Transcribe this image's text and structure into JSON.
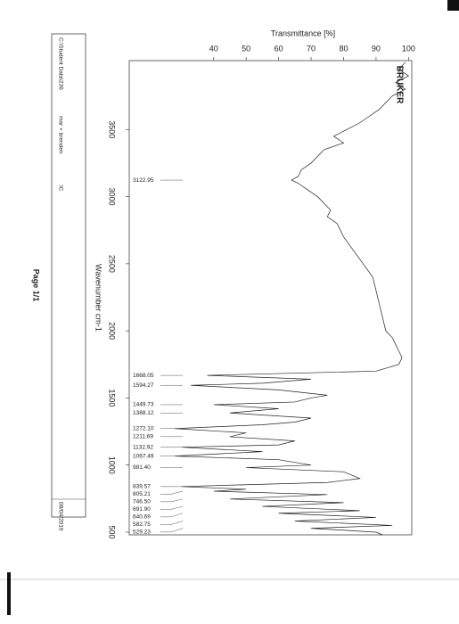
{
  "chart_data": {
    "type": "line",
    "title": "Transmittance [%]",
    "x_label": "Wavenumber cm-1",
    "logo": "BRUKER",
    "x": [
      4000,
      3950,
      3900,
      3850,
      3800,
      3750,
      3700,
      3650,
      3600,
      3550,
      3500,
      3450,
      3400,
      3350,
      3300,
      3250,
      3200,
      3150,
      3123,
      3100,
      3050,
      3000,
      2950,
      2900,
      2850,
      2800,
      2700,
      2600,
      2500,
      2400,
      2300,
      2200,
      2100,
      2000,
      1950,
      1900,
      1850,
      1800,
      1750,
      1700,
      1668,
      1640,
      1610,
      1594,
      1560,
      1520,
      1500,
      1470,
      1450,
      1420,
      1388,
      1350,
      1320,
      1300,
      1272,
      1240,
      1211,
      1180,
      1150,
      1133,
      1100,
      1067,
      1040,
      1000,
      981,
      950,
      900,
      870,
      840,
      820,
      805,
      780,
      747,
      720,
      692,
      660,
      641,
      610,
      583,
      550,
      529,
      500,
      480
    ],
    "series": [
      {
        "name": "mar + brenden",
        "color": "#222222",
        "values": [
          99,
          97,
          100,
          96,
          99,
          95,
          93,
          91,
          88,
          85,
          81,
          77,
          80,
          74,
          72,
          70,
          67,
          66,
          64,
          66,
          69,
          72,
          74,
          76,
          75,
          78,
          80,
          83,
          86,
          89,
          90,
          91,
          92,
          93,
          95,
          96,
          97,
          98,
          97,
          90,
          38,
          70,
          55,
          33,
          60,
          75,
          70,
          65,
          40,
          60,
          45,
          70,
          65,
          55,
          28,
          50,
          45,
          65,
          60,
          30,
          55,
          28,
          60,
          70,
          50,
          80,
          85,
          75,
          30,
          50,
          40,
          75,
          45,
          80,
          55,
          85,
          60,
          90,
          65,
          95,
          70,
          90,
          92
        ]
      }
    ],
    "xlim": [
      4000,
      480
    ],
    "xticks": [
      3500,
      3000,
      2500,
      2000,
      1500,
      1000,
      500
    ],
    "ylim": [
      14,
      101
    ],
    "yticks": [
      40,
      50,
      60,
      70,
      80,
      90,
      100
    ],
    "grid": false,
    "peaks": [
      3122.95,
      1668.05,
      1594.27,
      1449.73,
      1388.12,
      {
        "value": 1272.1,
        "label": "1272.10"
      },
      1211.69,
      1132.92,
      1067.49,
      {
        "value": 981.4,
        "label": "981.40"
      },
      839.57,
      805.21,
      {
        "value": 746.5,
        "label": "746.50"
      },
      {
        "value": 691.9,
        "label": "691.90"
      },
      640.69,
      582.75,
      529.23
    ]
  },
  "footer": {
    "file": "C:\\Student Data\\236",
    "operator": "mar + brenden",
    "method": "IC",
    "date": "08/04/2019",
    "page": "Page 1/1"
  }
}
